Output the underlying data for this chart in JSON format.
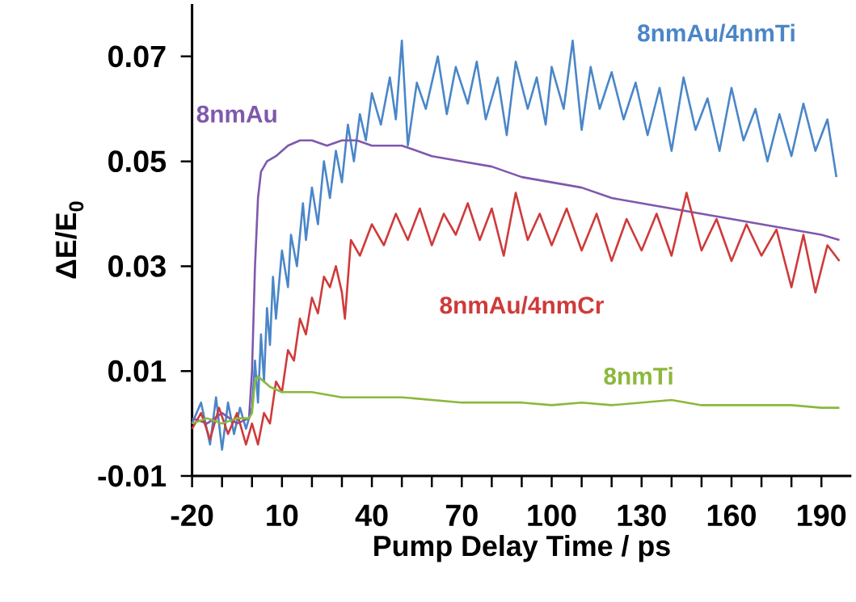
{
  "chart_data": {
    "type": "line",
    "xlabel": "Pump Delay Time / ps",
    "ylabel": "ΔE/E$_{0}$",
    "xlim": [
      -20,
      200
    ],
    "xticks": [
      -20,
      10,
      40,
      70,
      100,
      130,
      160,
      190
    ],
    "ylim": [
      -0.01,
      0.08
    ],
    "yticks": [
      -0.01,
      0.01,
      0.03,
      0.05,
      0.07
    ],
    "legend": false,
    "grid": false,
    "marker": "none",
    "line_style": "solid",
    "series": [
      {
        "name": "8nmAu/4nmTi",
        "color": "#4a86c8",
        "x": [
          -20,
          -17,
          -14,
          -12,
          -10,
          -8,
          -6,
          -4,
          -2,
          0,
          1,
          2,
          3,
          4,
          5,
          6,
          7,
          8,
          10,
          12,
          13,
          15,
          17,
          18,
          20,
          22,
          24,
          26,
          28,
          30,
          32,
          34,
          36,
          38,
          40,
          43,
          46,
          48,
          50,
          52,
          55,
          58,
          62,
          65,
          68,
          72,
          75,
          78,
          82,
          85,
          88,
          92,
          95,
          98,
          100,
          104,
          107,
          110,
          113,
          116,
          120,
          124,
          128,
          132,
          136,
          140,
          144,
          148,
          152,
          156,
          160,
          164,
          168,
          172,
          176,
          180,
          184,
          188,
          192,
          195
        ],
        "values": [
          0.0,
          0.004,
          -0.004,
          0.005,
          -0.005,
          0.004,
          -0.002,
          0.003,
          -0.001,
          0.003,
          0.012,
          0.004,
          0.017,
          0.008,
          0.022,
          0.015,
          0.028,
          0.02,
          0.033,
          0.026,
          0.036,
          0.03,
          0.042,
          0.035,
          0.045,
          0.038,
          0.05,
          0.043,
          0.052,
          0.046,
          0.057,
          0.05,
          0.059,
          0.054,
          0.063,
          0.057,
          0.066,
          0.058,
          0.073,
          0.053,
          0.065,
          0.06,
          0.07,
          0.059,
          0.068,
          0.061,
          0.069,
          0.058,
          0.066,
          0.055,
          0.069,
          0.06,
          0.066,
          0.057,
          0.068,
          0.06,
          0.073,
          0.056,
          0.068,
          0.06,
          0.067,
          0.058,
          0.065,
          0.055,
          0.064,
          0.052,
          0.066,
          0.056,
          0.062,
          0.052,
          0.064,
          0.054,
          0.06,
          0.05,
          0.059,
          0.051,
          0.061,
          0.052,
          0.058,
          0.047
        ]
      },
      {
        "name": "8nmAu",
        "color": "#7f58ad",
        "x": [
          -20,
          -15,
          -10,
          -5,
          -1,
          0,
          1,
          2,
          3,
          5,
          8,
          12,
          16,
          20,
          25,
          30,
          35,
          40,
          50,
          60,
          70,
          80,
          90,
          100,
          110,
          120,
          130,
          140,
          150,
          160,
          170,
          180,
          190,
          196
        ],
        "values": [
          0.001,
          0.0,
          0.002,
          0.0,
          0.001,
          0.01,
          0.03,
          0.043,
          0.048,
          0.05,
          0.051,
          0.053,
          0.054,
          0.054,
          0.053,
          0.054,
          0.054,
          0.053,
          0.053,
          0.051,
          0.05,
          0.049,
          0.047,
          0.046,
          0.045,
          0.043,
          0.042,
          0.041,
          0.04,
          0.039,
          0.038,
          0.037,
          0.036,
          0.035
        ]
      },
      {
        "name": "8nmAu/4nmCr",
        "color": "#cf3a3a",
        "x": [
          -20,
          -17,
          -14,
          -11,
          -8,
          -5,
          -2,
          0,
          2,
          4,
          6,
          8,
          10,
          12,
          14,
          16,
          18,
          20,
          22,
          24,
          26,
          28,
          30,
          31,
          33,
          36,
          40,
          44,
          48,
          52,
          56,
          60,
          64,
          68,
          72,
          76,
          80,
          84,
          88,
          92,
          96,
          100,
          105,
          110,
          115,
          120,
          125,
          130,
          135,
          140,
          145,
          150,
          155,
          160,
          165,
          170,
          175,
          180,
          184,
          188,
          192,
          196
        ],
        "values": [
          -0.001,
          0.002,
          -0.003,
          0.003,
          -0.002,
          0.002,
          -0.004,
          0.0,
          -0.004,
          0.002,
          0.0,
          0.008,
          0.006,
          0.014,
          0.012,
          0.02,
          0.017,
          0.024,
          0.021,
          0.028,
          0.026,
          0.03,
          0.025,
          0.02,
          0.035,
          0.032,
          0.038,
          0.034,
          0.04,
          0.035,
          0.041,
          0.034,
          0.04,
          0.036,
          0.042,
          0.035,
          0.041,
          0.032,
          0.044,
          0.035,
          0.04,
          0.034,
          0.041,
          0.033,
          0.04,
          0.031,
          0.039,
          0.033,
          0.04,
          0.032,
          0.044,
          0.033,
          0.039,
          0.031,
          0.038,
          0.032,
          0.037,
          0.026,
          0.036,
          0.025,
          0.034,
          0.031
        ]
      },
      {
        "name": "8nmTi",
        "color": "#8cb83c",
        "x": [
          -20,
          -15,
          -10,
          -5,
          -1,
          0,
          1,
          2,
          4,
          6,
          10,
          20,
          30,
          40,
          50,
          60,
          70,
          80,
          90,
          100,
          110,
          120,
          130,
          140,
          150,
          160,
          170,
          180,
          190,
          196
        ],
        "values": [
          0.0,
          0.001,
          0.0,
          0.001,
          0.001,
          0.002,
          0.008,
          0.009,
          0.008,
          0.007,
          0.006,
          0.006,
          0.005,
          0.005,
          0.005,
          0.0045,
          0.004,
          0.004,
          0.004,
          0.0035,
          0.004,
          0.0035,
          0.004,
          0.0045,
          0.0035,
          0.0035,
          0.0035,
          0.0035,
          0.003,
          0.003
        ]
      }
    ]
  }
}
